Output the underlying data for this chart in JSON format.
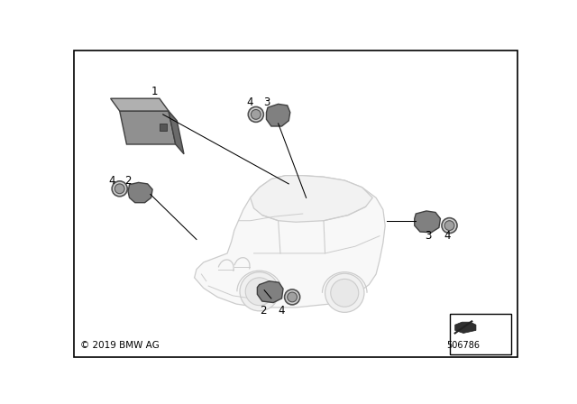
{
  "background_color": "#ffffff",
  "border_color": "#000000",
  "copyright_text": "© 2019 BMW AG",
  "part_number": "506786",
  "car_line_color": "#cccccc",
  "car_face_color": "#f8f8f8",
  "sensor_color": "#808080",
  "sensor_dark": "#606060",
  "ring_color": "#707070",
  "ecu_front": "#909090",
  "ecu_top": "#b0b0b0",
  "ecu_right": "#6a6a6a",
  "line_color": "#000000",
  "label_fontsize": 8.5
}
